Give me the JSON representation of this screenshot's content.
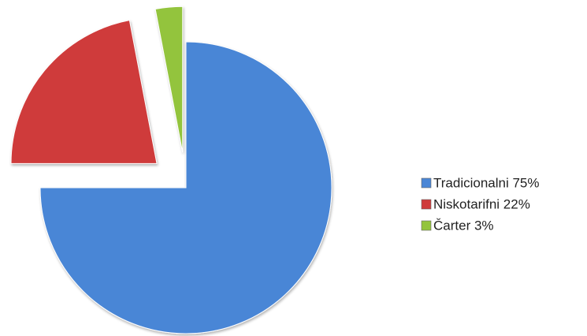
{
  "chart_data": {
    "type": "pie",
    "categories": [
      "Tradicionalni 75%",
      "Niskotarifni 22%",
      "Čarter 3%"
    ],
    "values": [
      75,
      22,
      3
    ],
    "colors": [
      "#4a86d6",
      "#cf3b3b",
      "#93c43c"
    ],
    "legend": "right"
  }
}
